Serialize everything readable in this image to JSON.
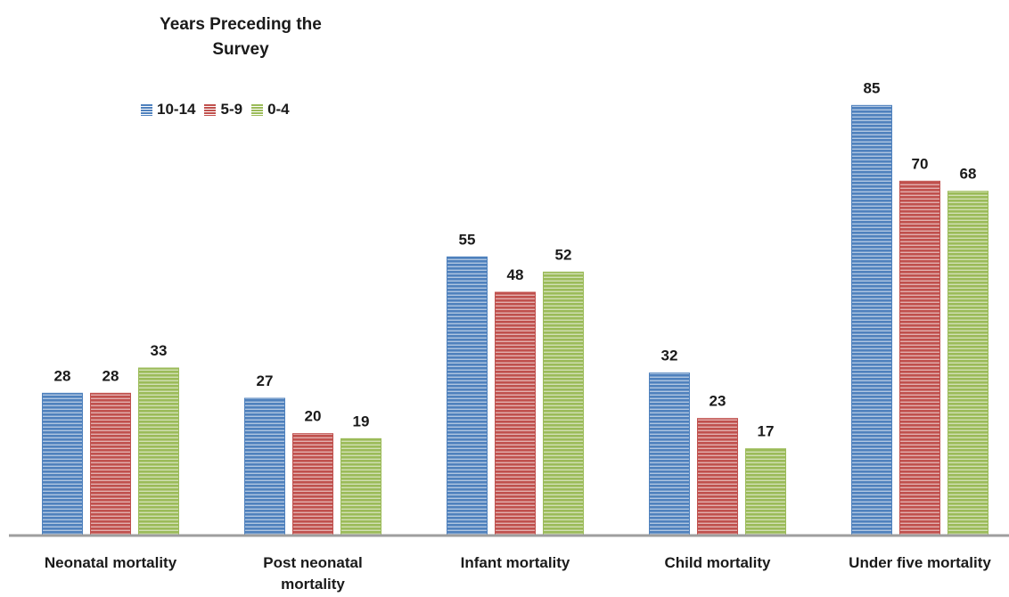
{
  "chart_data": {
    "type": "bar",
    "legend_title": "Years Preceding the Survey",
    "categories": [
      "Neonatal mortality",
      "Post neonatal mortality",
      "Infant mortality",
      "Child mortality",
      "Under five mortality"
    ],
    "category_lines": [
      [
        "Neonatal mortality"
      ],
      [
        "Post neonatal",
        "mortality"
      ],
      [
        "Infant mortality"
      ],
      [
        "Child mortality"
      ],
      [
        "Under five mortality"
      ]
    ],
    "series": [
      {
        "name": "10-14",
        "values": [
          28,
          27,
          55,
          32,
          85
        ],
        "color": "#4f81bd"
      },
      {
        "name": "5-9",
        "values": [
          28,
          20,
          48,
          23,
          70
        ],
        "color": "#c0504d"
      },
      {
        "name": "0-4",
        "values": [
          33,
          19,
          52,
          17,
          68
        ],
        "color": "#9bbb59"
      }
    ],
    "ylim": [
      0,
      90
    ],
    "grid": false,
    "legend_position": "top-left"
  }
}
